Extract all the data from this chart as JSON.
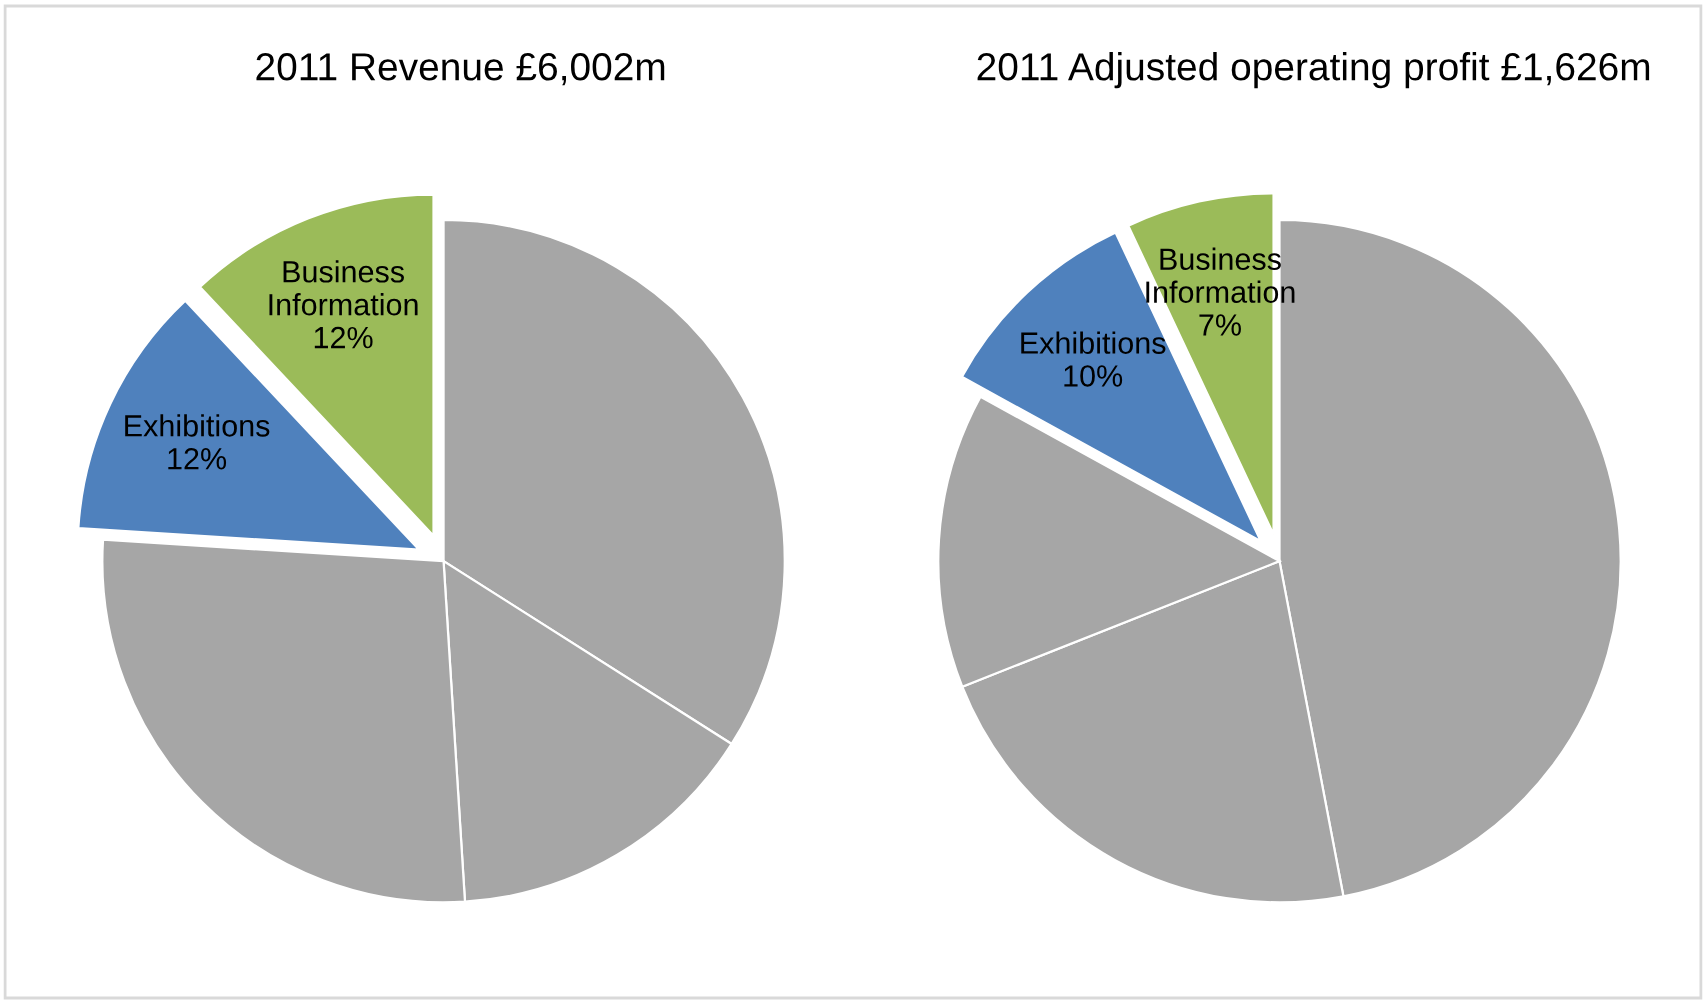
{
  "chart_data": [
    {
      "type": "pie",
      "title": "2011 Revenue £6,002m",
      "categories": [
        null,
        null,
        null,
        "Exhibitions",
        "Business Information"
      ],
      "values": [
        34,
        15,
        27,
        12,
        12
      ],
      "value_labels": [
        null,
        null,
        null,
        "12%",
        "12%"
      ],
      "colors": [
        "#a6a6a6",
        "#a6a6a6",
        "#a6a6a6",
        "#4f81bd",
        "#9bbb59"
      ]
    },
    {
      "type": "pie",
      "title": "2011 Adjusted operating profit £1,626m",
      "categories": [
        null,
        null,
        null,
        "Exhibitions",
        "Business Information"
      ],
      "values": [
        47,
        22,
        14,
        10,
        7
      ],
      "value_labels": [
        null,
        null,
        null,
        "10%",
        "7%"
      ],
      "colors": [
        "#a6a6a6",
        "#a6a6a6",
        "#a6a6a6",
        "#4f81bd",
        "#9bbb59"
      ]
    }
  ]
}
